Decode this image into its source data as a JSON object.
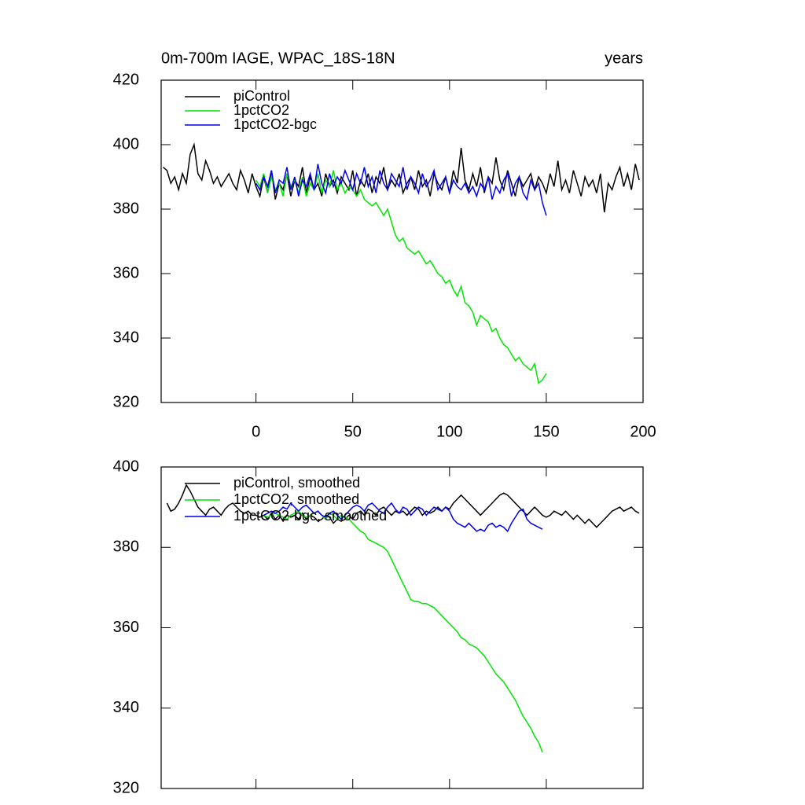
{
  "chart_data": [
    {
      "type": "line",
      "title": "0m-700m IAGE, WPAC_18S-18N",
      "subtitle": "years",
      "x": [
        -48,
        -46,
        -44,
        -42,
        -40,
        -38,
        -36,
        -34,
        -32,
        -30,
        -28,
        -26,
        -24,
        -22,
        -20,
        -18,
        -16,
        -14,
        -12,
        -10,
        -8,
        -6,
        -4,
        -2,
        0,
        2,
        4,
        6,
        8,
        10,
        12,
        14,
        16,
        18,
        20,
        22,
        24,
        26,
        28,
        30,
        32,
        34,
        36,
        38,
        40,
        42,
        44,
        46,
        48,
        50,
        52,
        54,
        56,
        58,
        60,
        62,
        64,
        66,
        68,
        70,
        72,
        74,
        76,
        78,
        80,
        82,
        84,
        86,
        88,
        90,
        92,
        94,
        96,
        98,
        100,
        102,
        104,
        106,
        108,
        110,
        112,
        114,
        116,
        118,
        120,
        122,
        124,
        126,
        128,
        130,
        132,
        134,
        136,
        138,
        140,
        142,
        144,
        146,
        148,
        150,
        152,
        154,
        156,
        158,
        160,
        162,
        164,
        166,
        168,
        170,
        172,
        174,
        176,
        178,
        180,
        182,
        184,
        186,
        188,
        190,
        192,
        194,
        196,
        198
      ],
      "xlim": [
        -49,
        200
      ],
      "xticks": [
        0,
        50,
        100,
        150,
        200
      ],
      "ylim": [
        320,
        420
      ],
      "yticks": [
        320,
        340,
        360,
        380,
        400,
        420
      ],
      "xtick_labels": true,
      "series": [
        {
          "name": "piControl",
          "color": "#000000",
          "values": [
            393,
            392,
            388,
            390,
            386,
            391,
            388,
            397,
            400,
            391,
            389,
            395,
            392,
            388,
            390,
            387,
            389,
            391,
            388,
            386,
            392,
            389,
            385,
            391,
            387,
            384,
            390,
            385,
            392,
            383,
            388,
            386,
            391,
            384,
            389,
            387,
            393,
            385,
            390,
            386,
            388,
            384,
            391,
            387,
            389,
            385,
            390,
            388,
            386,
            392,
            384,
            389,
            387,
            391,
            385,
            390,
            388,
            393,
            386,
            389,
            387,
            391,
            385,
            388,
            390,
            386,
            392,
            387,
            389,
            384,
            391,
            388,
            386,
            390,
            385,
            392,
            388,
            399,
            389,
            386,
            391,
            387,
            393,
            385,
            390,
            388,
            396,
            389,
            386,
            392,
            388,
            384,
            390,
            387,
            389,
            391,
            386,
            390,
            388,
            385,
            391,
            387,
            395,
            386,
            389,
            385,
            392,
            388,
            384,
            390,
            387,
            389,
            385,
            391,
            379,
            388,
            386,
            390,
            393,
            387,
            391,
            386,
            394,
            389
          ]
        },
        {
          "name": "1pctCO2",
          "color": "#00e600",
          "values": [
            null,
            null,
            null,
            null,
            null,
            null,
            null,
            null,
            null,
            null,
            null,
            null,
            null,
            null,
            null,
            null,
            null,
            null,
            null,
            null,
            null,
            null,
            null,
            null,
            389,
            387,
            391,
            385,
            390,
            386,
            388,
            384,
            391,
            387,
            389,
            385,
            390,
            384,
            388,
            386,
            391,
            385,
            389,
            387,
            392,
            386,
            388,
            385,
            387,
            386,
            384,
            386,
            383,
            382,
            381,
            382,
            380,
            378,
            380,
            376,
            372,
            370,
            371,
            368,
            367,
            366,
            367,
            365,
            363,
            364,
            362,
            360,
            359,
            357,
            358,
            355,
            353,
            356,
            351,
            350,
            348,
            344,
            347,
            346,
            345,
            342,
            343,
            340,
            338,
            337,
            335,
            333,
            334,
            332,
            331,
            330,
            332,
            326,
            327,
            329,
            null,
            null,
            null,
            null,
            null,
            null,
            null,
            null,
            null,
            null,
            null,
            null,
            null,
            null,
            null,
            null,
            null,
            null,
            null,
            null,
            null,
            null,
            null,
            null
          ]
        },
        {
          "name": "1pctCO2-bgc",
          "color": "#0000ee",
          "values": [
            null,
            null,
            null,
            null,
            null,
            null,
            null,
            null,
            null,
            null,
            null,
            null,
            null,
            null,
            null,
            null,
            null,
            null,
            null,
            null,
            null,
            null,
            null,
            null,
            388,
            386,
            390,
            387,
            392,
            385,
            389,
            388,
            393,
            386,
            390,
            384,
            389,
            387,
            391,
            386,
            394,
            388,
            385,
            391,
            387,
            390,
            388,
            392,
            389,
            386,
            391,
            388,
            393,
            387,
            390,
            385,
            392,
            388,
            386,
            391,
            389,
            387,
            393,
            386,
            390,
            388,
            385,
            391,
            387,
            389,
            392,
            386,
            388,
            390,
            385,
            389,
            387,
            386,
            388,
            385,
            387,
            384,
            388,
            386,
            390,
            383,
            387,
            385,
            389,
            391,
            384,
            388,
            390,
            385,
            383,
            389,
            386,
            388,
            382,
            378,
            null,
            null,
            null,
            null,
            null,
            null,
            null,
            null,
            null,
            null,
            null,
            null,
            null,
            null,
            null,
            null,
            null,
            null,
            null,
            null,
            null,
            null,
            null,
            null
          ]
        }
      ]
    },
    {
      "type": "line",
      "x": [
        -48,
        -46,
        -44,
        -42,
        -40,
        -38,
        -36,
        -34,
        -32,
        -30,
        -28,
        -26,
        -24,
        -22,
        -20,
        -18,
        -16,
        -14,
        -12,
        -10,
        -8,
        -6,
        -4,
        -2,
        0,
        2,
        4,
        6,
        8,
        10,
        12,
        14,
        16,
        18,
        20,
        22,
        24,
        26,
        28,
        30,
        32,
        34,
        36,
        38,
        40,
        42,
        44,
        46,
        48,
        50,
        52,
        54,
        56,
        58,
        60,
        62,
        64,
        66,
        68,
        70,
        72,
        74,
        76,
        78,
        80,
        82,
        84,
        86,
        88,
        90,
        92,
        94,
        96,
        98,
        100,
        102,
        104,
        106,
        108,
        110,
        112,
        114,
        116,
        118,
        120,
        122,
        124,
        126,
        128,
        130,
        132,
        134,
        136,
        138,
        140,
        142,
        144,
        146,
        148,
        150,
        152,
        154,
        156,
        158,
        160,
        162,
        164,
        166,
        168,
        170,
        172,
        174,
        176,
        178,
        180,
        182,
        184,
        186,
        188,
        190,
        192,
        194,
        196,
        198
      ],
      "xlim": [
        -49,
        200
      ],
      "xticks": [
        0,
        50,
        100,
        150,
        200
      ],
      "ylim": [
        320,
        400
      ],
      "yticks": [
        320,
        340,
        360,
        380,
        400
      ],
      "xtick_labels": false,
      "series": [
        {
          "name": "piControl, smoothed",
          "color": "#000000",
          "values": [
            null,
            391,
            389,
            389.5,
            391,
            393,
            395.5,
            394,
            392,
            390,
            389,
            388,
            389.5,
            390,
            389,
            388,
            389.5,
            390.5,
            391,
            390,
            389,
            388.5,
            389,
            388,
            388,
            387.5,
            388,
            387,
            388.5,
            387,
            388,
            386.5,
            388,
            387.5,
            388,
            387,
            388.5,
            387,
            388,
            387.5,
            386.5,
            387,
            388,
            387.5,
            386,
            387,
            386.5,
            387,
            388,
            387,
            388.5,
            389,
            388,
            389.5,
            389,
            388,
            389.5,
            390,
            389,
            388,
            389,
            388.5,
            389,
            388,
            389,
            390,
            389.5,
            388,
            389,
            388.5,
            389,
            390,
            389,
            390,
            389.5,
            391,
            392,
            393,
            392,
            391,
            390,
            389,
            388,
            389,
            390,
            391,
            392,
            393,
            393.5,
            393,
            392,
            391,
            390,
            389,
            388,
            389,
            390,
            389,
            388,
            387.5,
            388,
            389,
            388.5,
            388,
            389,
            388,
            387,
            388,
            387,
            386,
            387,
            386,
            385,
            386,
            387,
            388,
            389,
            389.5,
            390,
            389,
            389.5,
            390,
            389,
            388.5
          ]
        },
        {
          "name": "1pctCO2, smoothed",
          "color": "#00e600",
          "values": [
            null,
            null,
            null,
            null,
            null,
            null,
            null,
            null,
            null,
            null,
            null,
            null,
            null,
            null,
            null,
            null,
            null,
            null,
            null,
            null,
            null,
            null,
            null,
            null,
            null,
            null,
            388,
            387.5,
            388,
            388.5,
            388,
            387.5,
            387,
            388,
            388.5,
            389,
            388,
            387.5,
            388,
            388.5,
            389,
            388,
            387,
            388.5,
            388,
            387,
            388,
            387.5,
            387,
            386,
            385,
            384,
            383.5,
            382,
            381.5,
            381,
            380.5,
            380,
            379,
            377,
            375,
            373,
            371,
            369,
            367,
            366.5,
            366.5,
            366,
            366,
            365.5,
            365,
            364,
            363,
            362,
            361,
            360,
            359,
            357.5,
            357,
            356,
            355.5,
            355,
            354,
            353,
            351.5,
            350,
            348.5,
            347.5,
            346.5,
            345,
            343.5,
            342,
            340,
            338,
            336.5,
            335,
            333,
            331.5,
            329,
            null,
            null,
            null,
            null,
            null,
            null,
            null,
            null,
            null,
            null,
            null,
            null,
            null,
            null,
            null,
            null,
            null,
            null,
            null,
            null,
            null,
            null,
            null,
            null,
            null
          ]
        },
        {
          "name": "1pctCO2-bgc, smoothed",
          "color": "#0000ee",
          "values": [
            null,
            null,
            null,
            null,
            null,
            null,
            null,
            null,
            null,
            null,
            null,
            null,
            null,
            null,
            null,
            null,
            null,
            null,
            null,
            null,
            null,
            null,
            null,
            null,
            null,
            null,
            388,
            388.5,
            389,
            388.5,
            389,
            390,
            389.5,
            391,
            390,
            389,
            390,
            390.5,
            389.5,
            388.5,
            389,
            388,
            387.5,
            388.5,
            389,
            388,
            387,
            388,
            389,
            390,
            390.5,
            390,
            389,
            390.5,
            391,
            390,
            389,
            388.5,
            390,
            391,
            389.5,
            388.5,
            390,
            389.5,
            388,
            389,
            390,
            389.5,
            388,
            389,
            390,
            389.5,
            389,
            390,
            389,
            387,
            386,
            385.5,
            385,
            386,
            385,
            384,
            384.5,
            384,
            385.5,
            386,
            385,
            385.5,
            385,
            384,
            386,
            387.5,
            389,
            389.5,
            387,
            386,
            385.5,
            385,
            384.5,
            null,
            null,
            null,
            null,
            null,
            null,
            null,
            null,
            null,
            null,
            null,
            null,
            null,
            null,
            null,
            null,
            null,
            null,
            null,
            null,
            null,
            null,
            null,
            null,
            null
          ]
        }
      ]
    }
  ]
}
